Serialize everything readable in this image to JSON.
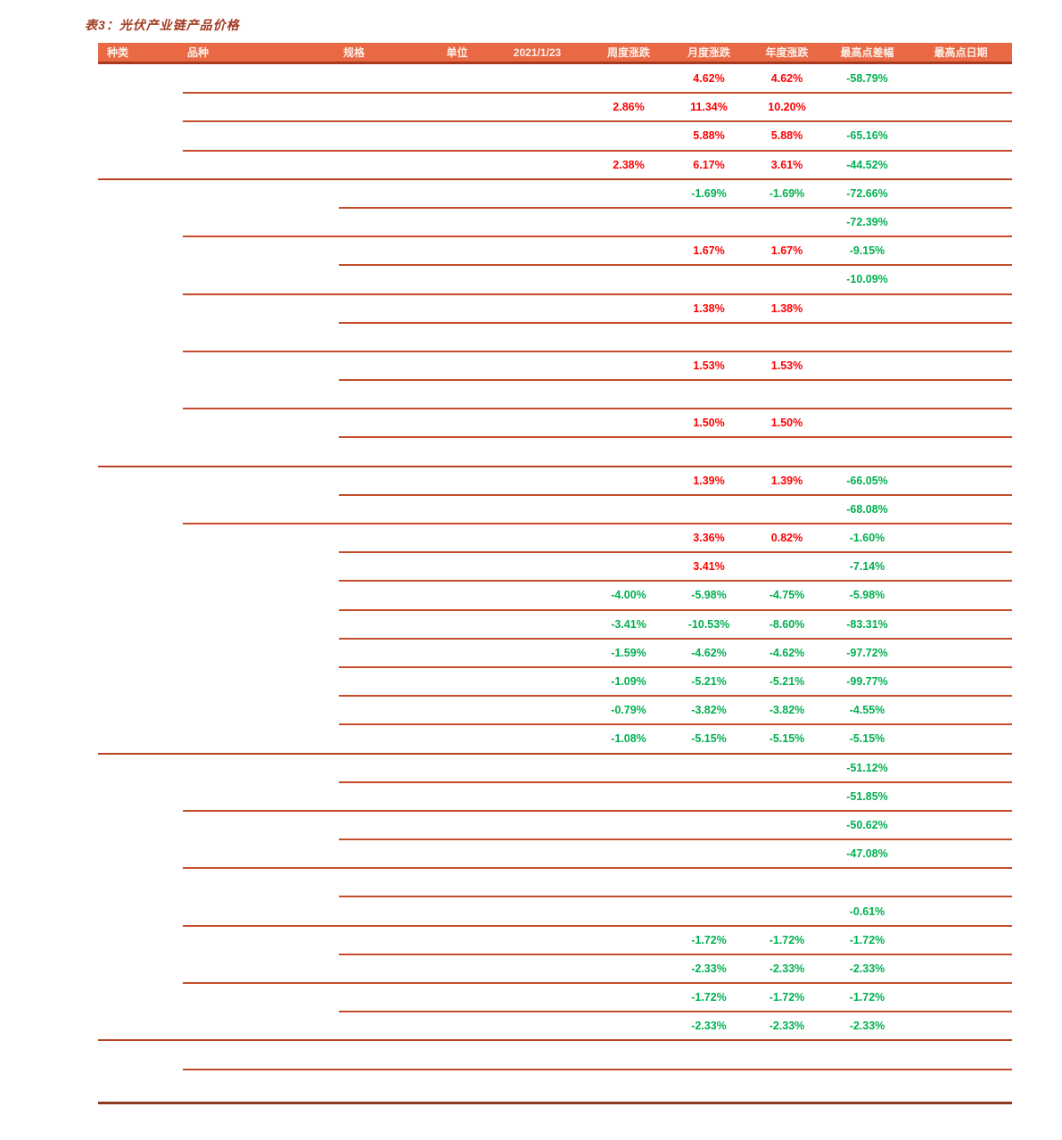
{
  "page": {
    "title": "表3：光伏产业链产品价格"
  },
  "colors": {
    "header_bg": "#E86943",
    "header_text": "#FDEFE9",
    "header_border": "#A93A1E",
    "grid_line": "#C54D2B",
    "grid_line_strong": "#B8411F",
    "bottom_line": "#8F3A1E",
    "title": "#A23A23",
    "positive": "#FF0000",
    "negative": "#00B050"
  },
  "table": {
    "columns": [
      {
        "label": "种类"
      },
      {
        "label": "品种"
      },
      {
        "label": "规格"
      },
      {
        "label": "单位"
      },
      {
        "label": "2021/1/23"
      },
      {
        "label": "周度涨跌"
      },
      {
        "label": "月度涨跌"
      },
      {
        "label": "年度涨跌"
      },
      {
        "label": "最高点差幅"
      },
      {
        "label": "最高点日期"
      }
    ],
    "rows": [
      {
        "week": "",
        "month": "4.62%",
        "year": "4.62%",
        "peak_diff": "-58.79%",
        "peak_date": "",
        "sep": "mid"
      },
      {
        "week": "2.86%",
        "month": "11.34%",
        "year": "10.20%",
        "peak_diff": "",
        "peak_date": "",
        "sep": "mid"
      },
      {
        "week": "",
        "month": "5.88%",
        "year": "5.88%",
        "peak_diff": "-65.16%",
        "peak_date": "",
        "sep": "mid"
      },
      {
        "week": "2.38%",
        "month": "6.17%",
        "year": "3.61%",
        "peak_diff": "-44.52%",
        "peak_date": "",
        "sep": "full"
      },
      {
        "week": "",
        "month": "-1.69%",
        "year": "-1.69%",
        "peak_diff": "-72.66%",
        "peak_date": "",
        "sep": "inner"
      },
      {
        "week": "",
        "month": "",
        "year": "",
        "peak_diff": "-72.39%",
        "peak_date": "",
        "sep": "mid"
      },
      {
        "week": "",
        "month": "1.67%",
        "year": "1.67%",
        "peak_diff": "-9.15%",
        "peak_date": "",
        "sep": "inner"
      },
      {
        "week": "",
        "month": "",
        "year": "",
        "peak_diff": "-10.09%",
        "peak_date": "",
        "sep": "mid"
      },
      {
        "week": "",
        "month": "1.38%",
        "year": "1.38%",
        "peak_diff": "",
        "peak_date": "",
        "sep": "inner"
      },
      {
        "week": "",
        "month": "",
        "year": "",
        "peak_diff": "",
        "peak_date": "",
        "sep": "mid"
      },
      {
        "week": "",
        "month": "1.53%",
        "year": "1.53%",
        "peak_diff": "",
        "peak_date": "",
        "sep": "inner"
      },
      {
        "week": "",
        "month": "",
        "year": "",
        "peak_diff": "",
        "peak_date": "",
        "sep": "mid"
      },
      {
        "week": "",
        "month": "1.50%",
        "year": "1.50%",
        "peak_diff": "",
        "peak_date": "",
        "sep": "inner"
      },
      {
        "week": "",
        "month": "",
        "year": "",
        "peak_diff": "",
        "peak_date": "",
        "sep": "full"
      },
      {
        "week": "",
        "month": "1.39%",
        "year": "1.39%",
        "peak_diff": "-66.05%",
        "peak_date": "",
        "sep": "inner"
      },
      {
        "week": "",
        "month": "",
        "year": "",
        "peak_diff": "-68.08%",
        "peak_date": "",
        "sep": "mid"
      },
      {
        "week": "",
        "month": "3.36%",
        "year": "0.82%",
        "peak_diff": "-1.60%",
        "peak_date": "",
        "sep": "inner"
      },
      {
        "week": "",
        "month": "3.41%",
        "year": "",
        "peak_diff": "-7.14%",
        "peak_date": "",
        "sep": "inner"
      },
      {
        "week": "-4.00%",
        "month": "-5.98%",
        "year": "-4.75%",
        "peak_diff": "-5.98%",
        "peak_date": "",
        "sep": "inner"
      },
      {
        "week": "-3.41%",
        "month": "-10.53%",
        "year": "-8.60%",
        "peak_diff": "-83.31%",
        "peak_date": "",
        "sep": "inner"
      },
      {
        "week": "-1.59%",
        "month": "-4.62%",
        "year": "-4.62%",
        "peak_diff": "-97.72%",
        "peak_date": "",
        "sep": "inner"
      },
      {
        "week": "-1.09%",
        "month": "-5.21%",
        "year": "-5.21%",
        "peak_diff": "-99.77%",
        "peak_date": "",
        "sep": "inner"
      },
      {
        "week": "-0.79%",
        "month": "-3.82%",
        "year": "-3.82%",
        "peak_diff": "-4.55%",
        "peak_date": "",
        "sep": "inner"
      },
      {
        "week": "-1.08%",
        "month": "-5.15%",
        "year": "-5.15%",
        "peak_diff": "-5.15%",
        "peak_date": "",
        "sep": "full"
      },
      {
        "week": "",
        "month": "",
        "year": "",
        "peak_diff": "-51.12%",
        "peak_date": "",
        "sep": "inner"
      },
      {
        "week": "",
        "month": "",
        "year": "",
        "peak_diff": "-51.85%",
        "peak_date": "",
        "sep": "mid"
      },
      {
        "week": "",
        "month": "",
        "year": "",
        "peak_diff": "-50.62%",
        "peak_date": "",
        "sep": "inner"
      },
      {
        "week": "",
        "month": "",
        "year": "",
        "peak_diff": "-47.08%",
        "peak_date": "",
        "sep": "mid"
      },
      {
        "week": "",
        "month": "",
        "year": "",
        "peak_diff": "",
        "peak_date": "",
        "sep": "inner"
      },
      {
        "week": "",
        "month": "",
        "year": "",
        "peak_diff": "-0.61%",
        "peak_date": "",
        "sep": "mid"
      },
      {
        "week": "",
        "month": "-1.72%",
        "year": "-1.72%",
        "peak_diff": "-1.72%",
        "peak_date": "",
        "sep": "inner"
      },
      {
        "week": "",
        "month": "-2.33%",
        "year": "-2.33%",
        "peak_diff": "-2.33%",
        "peak_date": "",
        "sep": "mid"
      },
      {
        "week": "",
        "month": "-1.72%",
        "year": "-1.72%",
        "peak_diff": "-1.72%",
        "peak_date": "",
        "sep": "inner"
      },
      {
        "week": "",
        "month": "-2.33%",
        "year": "-2.33%",
        "peak_diff": "-2.33%",
        "peak_date": "",
        "sep": "full"
      },
      {
        "week": "",
        "month": "",
        "year": "",
        "peak_diff": "",
        "peak_date": "",
        "sep": "mid"
      },
      {
        "week": "",
        "month": "",
        "year": "",
        "peak_diff": "",
        "peak_date": "",
        "sep": "bottom"
      }
    ]
  }
}
